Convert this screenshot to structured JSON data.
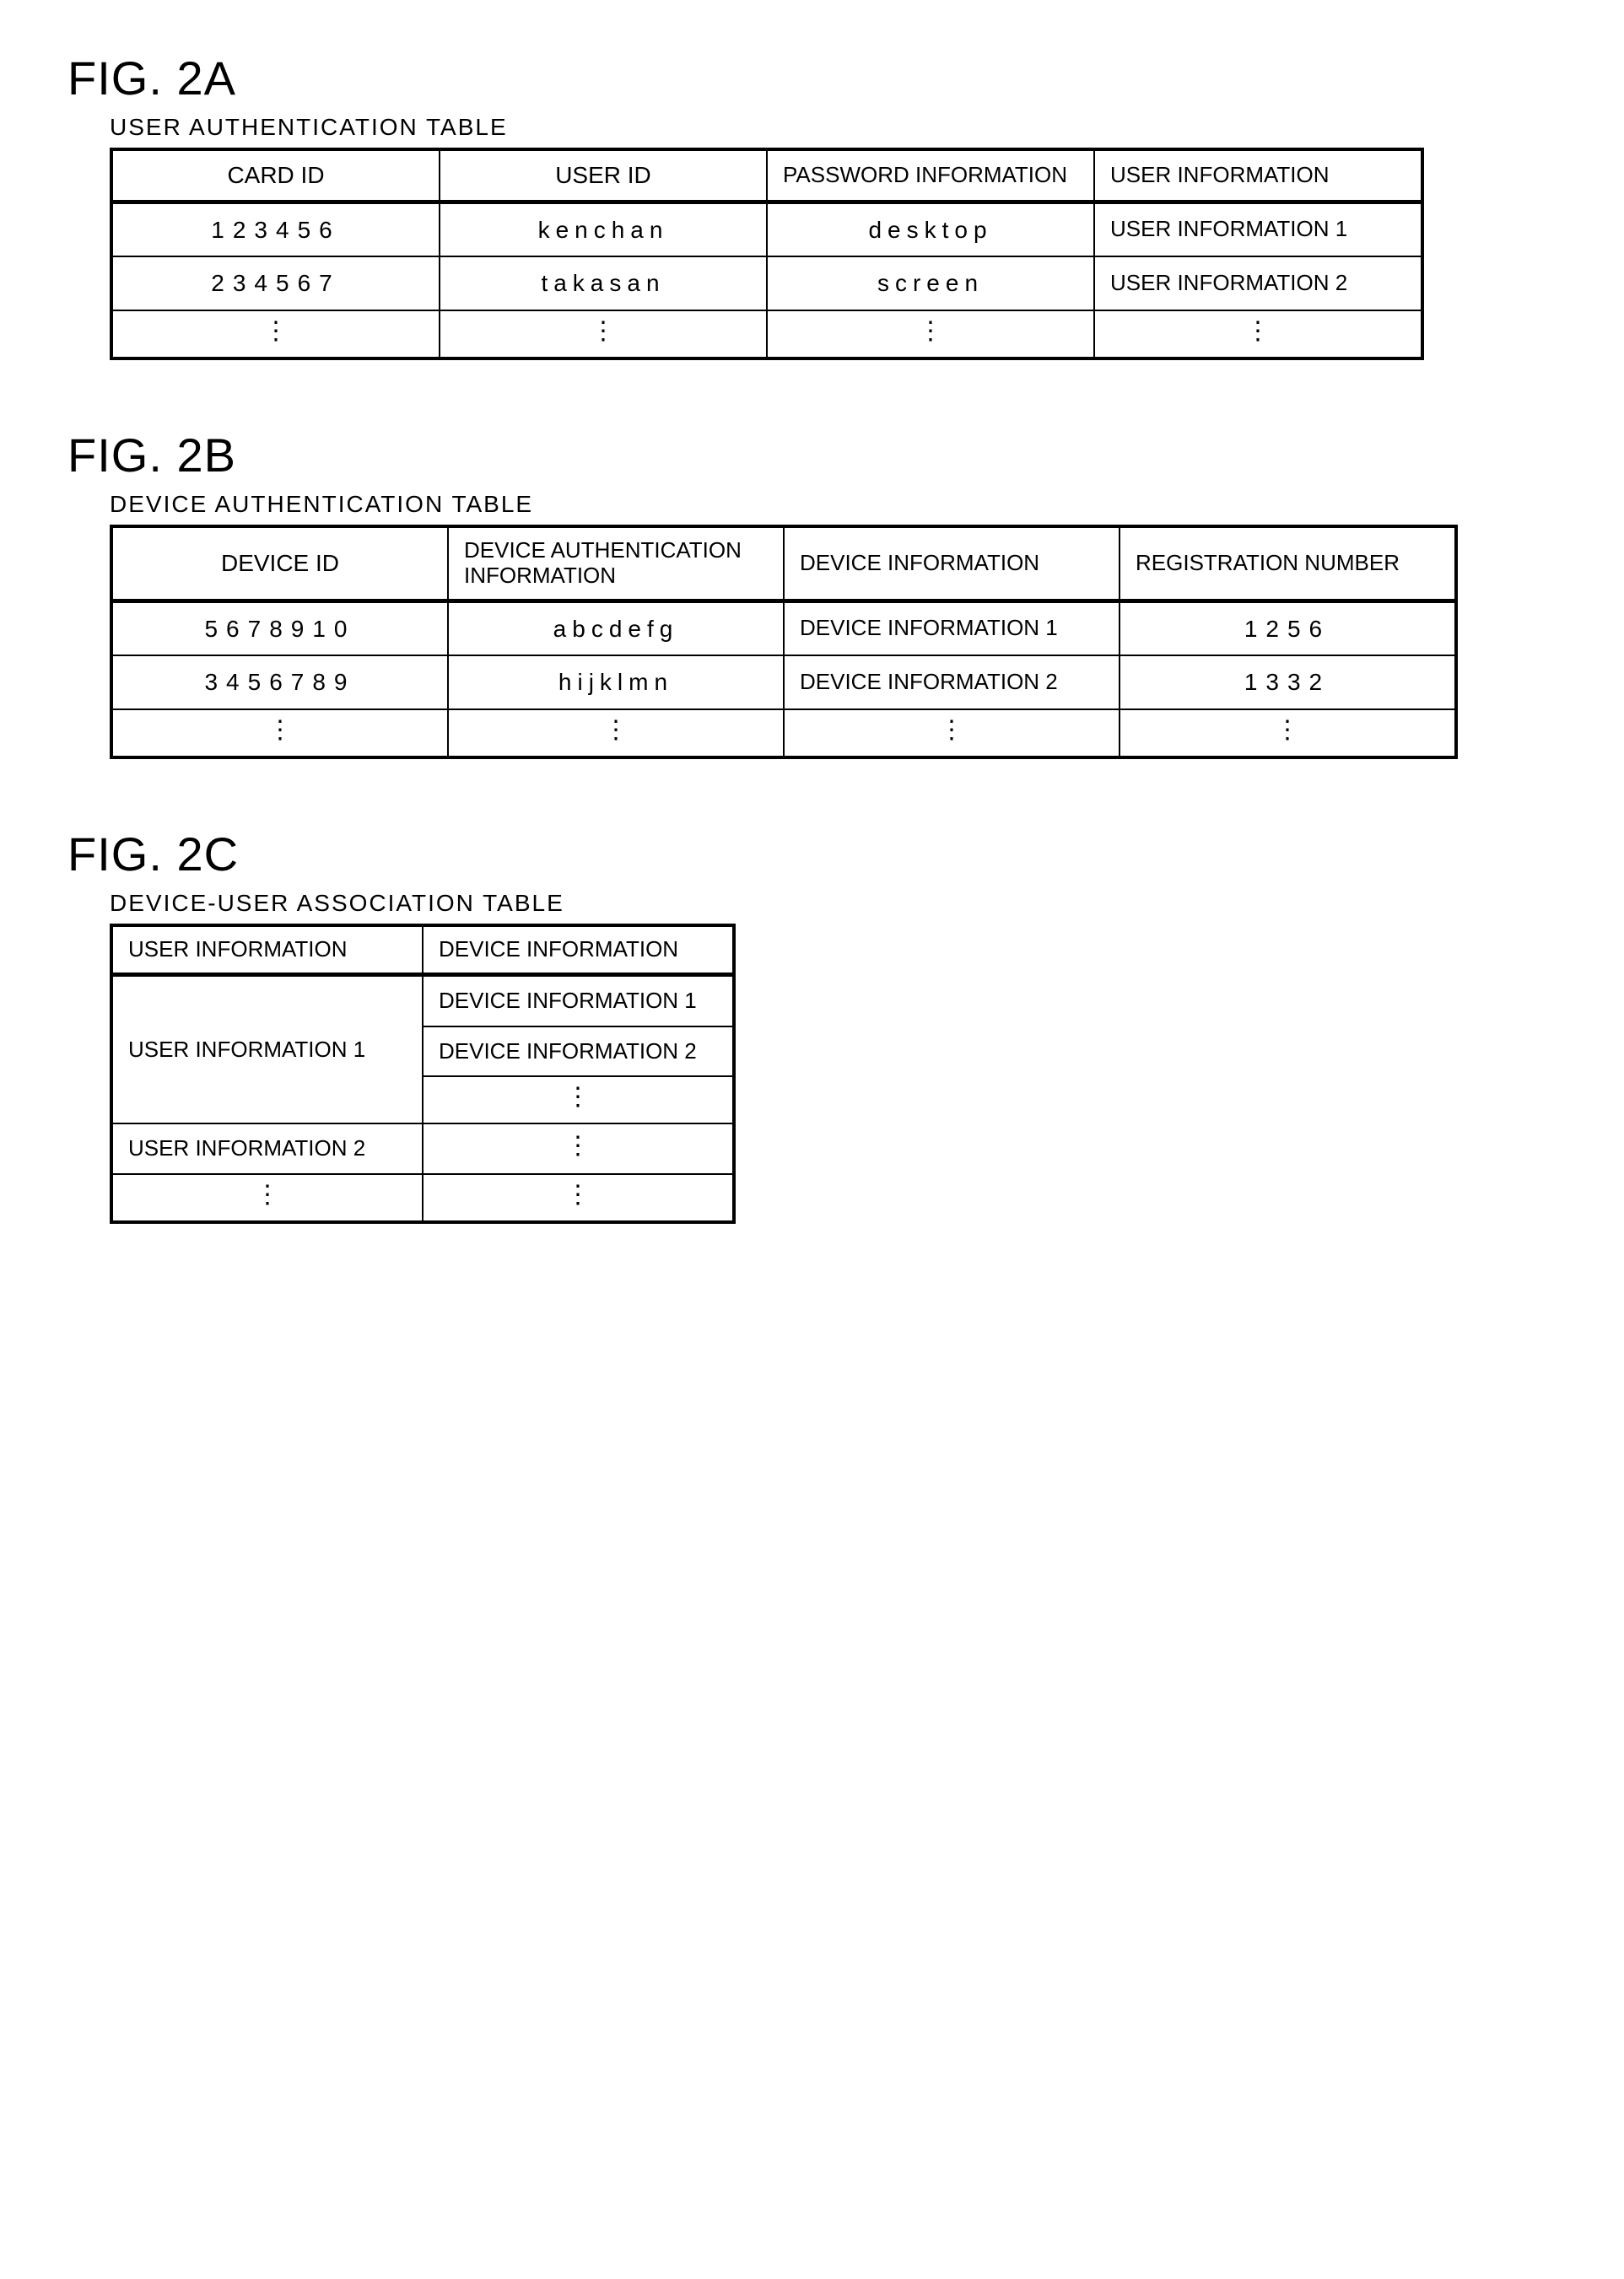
{
  "figA": {
    "label": "FIG. 2A",
    "title": "USER AUTHENTICATION TABLE",
    "headers": [
      "CARD ID",
      "USER ID",
      "PASSWORD INFORMATION",
      "USER INFORMATION"
    ],
    "rows": [
      {
        "card_id": "123456",
        "user_id": "kenchan",
        "password": "desktop",
        "user_info": "USER INFORMATION 1"
      },
      {
        "card_id": "234567",
        "user_id": "takasan",
        "password": "screen",
        "user_info": "USER INFORMATION 2"
      }
    ]
  },
  "figB": {
    "label": "FIG. 2B",
    "title": "DEVICE AUTHENTICATION TABLE",
    "headers": [
      "DEVICE ID",
      "DEVICE AUTHENTICATION INFORMATION",
      "DEVICE INFORMATION",
      "REGISTRATION NUMBER"
    ],
    "rows": [
      {
        "device_id": "5678910",
        "auth": "abcdefg",
        "device_info": "DEVICE INFORMATION 1",
        "reg": "1256"
      },
      {
        "device_id": "3456789",
        "auth": "hijklmn",
        "device_info": "DEVICE INFORMATION 2",
        "reg": "1332"
      }
    ]
  },
  "figC": {
    "label": "FIG. 2C",
    "title": "DEVICE-USER ASSOCIATION TABLE",
    "headers": [
      "USER INFORMATION",
      "DEVICE INFORMATION"
    ],
    "group1_user": "USER INFORMATION 1",
    "group1_devices": [
      "DEVICE INFORMATION 1",
      "DEVICE INFORMATION 2"
    ],
    "group2_user": "USER INFORMATION 2"
  },
  "vdots": "⋮"
}
